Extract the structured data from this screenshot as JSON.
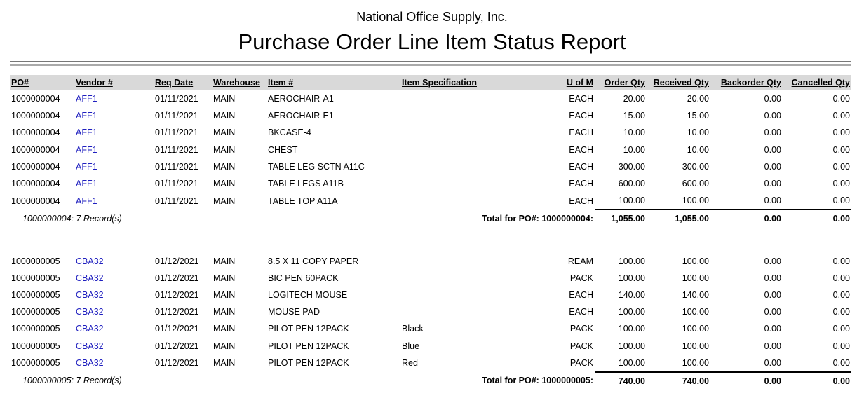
{
  "report": {
    "company": "National Office Supply, Inc.",
    "title": "Purchase Order Line Item Status Report"
  },
  "columns": [
    "PO#",
    "Vendor #",
    "Req Date",
    "Warehouse",
    "Item #",
    "Item Specification",
    "U of M",
    "Order Qty",
    "Received Qty",
    "Backorder Qty",
    "Cancelled Qty"
  ],
  "groups": [
    {
      "records_label": "1000000004: 7 Record(s)",
      "total_label": "Total for PO#: 1000000004:",
      "totals": [
        "1,055.00",
        "1,055.00",
        "0.00",
        "0.00"
      ],
      "rows": [
        [
          "1000000004",
          "AFF1",
          "01/11/2021",
          "MAIN",
          "AEROCHAIR-A1",
          "",
          "EACH",
          "20.00",
          "20.00",
          "0.00",
          "0.00"
        ],
        [
          "1000000004",
          "AFF1",
          "01/11/2021",
          "MAIN",
          "AEROCHAIR-E1",
          "",
          "EACH",
          "15.00",
          "15.00",
          "0.00",
          "0.00"
        ],
        [
          "1000000004",
          "AFF1",
          "01/11/2021",
          "MAIN",
          "BKCASE-4",
          "",
          "EACH",
          "10.00",
          "10.00",
          "0.00",
          "0.00"
        ],
        [
          "1000000004",
          "AFF1",
          "01/11/2021",
          "MAIN",
          "CHEST",
          "",
          "EACH",
          "10.00",
          "10.00",
          "0.00",
          "0.00"
        ],
        [
          "1000000004",
          "AFF1",
          "01/11/2021",
          "MAIN",
          "TABLE LEG SCTN A11C",
          "",
          "EACH",
          "300.00",
          "300.00",
          "0.00",
          "0.00"
        ],
        [
          "1000000004",
          "AFF1",
          "01/11/2021",
          "MAIN",
          "TABLE LEGS A11B",
          "",
          "EACH",
          "600.00",
          "600.00",
          "0.00",
          "0.00"
        ],
        [
          "1000000004",
          "AFF1",
          "01/11/2021",
          "MAIN",
          "TABLE TOP A11A",
          "",
          "EACH",
          "100.00",
          "100.00",
          "0.00",
          "0.00"
        ]
      ]
    },
    {
      "records_label": "1000000005: 7 Record(s)",
      "total_label": "Total for PO#: 1000000005:",
      "totals": [
        "740.00",
        "740.00",
        "0.00",
        "0.00"
      ],
      "rows": [
        [
          "1000000005",
          "CBA32",
          "01/12/2021",
          "MAIN",
          "8.5 X 11 COPY PAPER",
          "",
          "REAM",
          "100.00",
          "100.00",
          "0.00",
          "0.00"
        ],
        [
          "1000000005",
          "CBA32",
          "01/12/2021",
          "MAIN",
          "BIC PEN 60PACK",
          "",
          "PACK",
          "100.00",
          "100.00",
          "0.00",
          "0.00"
        ],
        [
          "1000000005",
          "CBA32",
          "01/12/2021",
          "MAIN",
          "LOGITECH MOUSE",
          "",
          "EACH",
          "140.00",
          "140.00",
          "0.00",
          "0.00"
        ],
        [
          "1000000005",
          "CBA32",
          "01/12/2021",
          "MAIN",
          "MOUSE PAD",
          "",
          "EACH",
          "100.00",
          "100.00",
          "0.00",
          "0.00"
        ],
        [
          "1000000005",
          "CBA32",
          "01/12/2021",
          "MAIN",
          "PILOT PEN 12PACK",
          "Black",
          "PACK",
          "100.00",
          "100.00",
          "0.00",
          "0.00"
        ],
        [
          "1000000005",
          "CBA32",
          "01/12/2021",
          "MAIN",
          "PILOT PEN 12PACK",
          "Blue",
          "PACK",
          "100.00",
          "100.00",
          "0.00",
          "0.00"
        ],
        [
          "1000000005",
          "CBA32",
          "01/12/2021",
          "MAIN",
          "PILOT PEN 12PACK",
          "Red",
          "PACK",
          "100.00",
          "100.00",
          "0.00",
          "0.00"
        ]
      ]
    }
  ]
}
